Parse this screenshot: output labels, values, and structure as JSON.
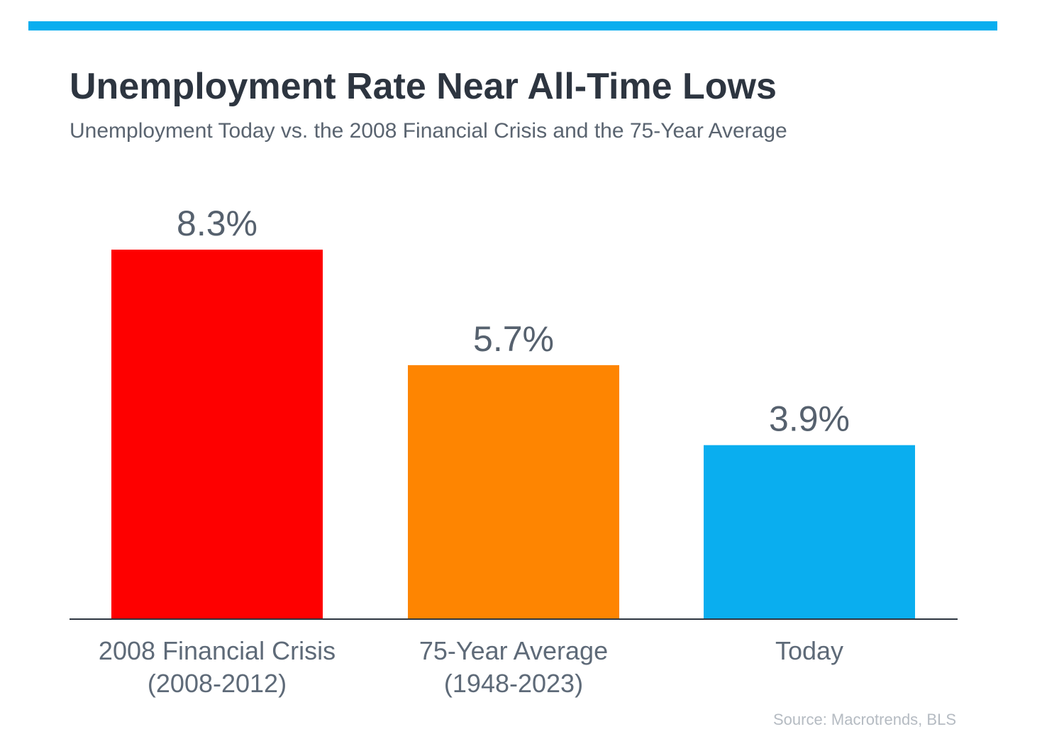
{
  "header": {
    "title": "Unemployment Rate Near All-Time Lows",
    "subtitle": "Unemployment Today vs. the 2008 Financial Crisis and the 75-Year Average",
    "accent_color": "#0aaeef"
  },
  "chart_data": {
    "type": "bar",
    "categories": [
      [
        "2008 Financial Crisis",
        "(2008-2012)"
      ],
      [
        "75-Year Average",
        "(1948-2023)"
      ],
      [
        "Today"
      ]
    ],
    "values": [
      8.3,
      5.7,
      3.9
    ],
    "value_labels": [
      "8.3%",
      "5.7%",
      "3.9%"
    ],
    "colors": [
      "#fe0000",
      "#fe8501",
      "#0aaeef"
    ],
    "ylim": [
      0,
      8.3
    ],
    "grid": false,
    "title": "Unemployment Rate Near All-Time Lows",
    "subtitle": "Unemployment Today vs. the 2008 Financial Crisis and the 75-Year Average"
  },
  "footer": {
    "source": "Source: Macrotrends, BLS"
  }
}
